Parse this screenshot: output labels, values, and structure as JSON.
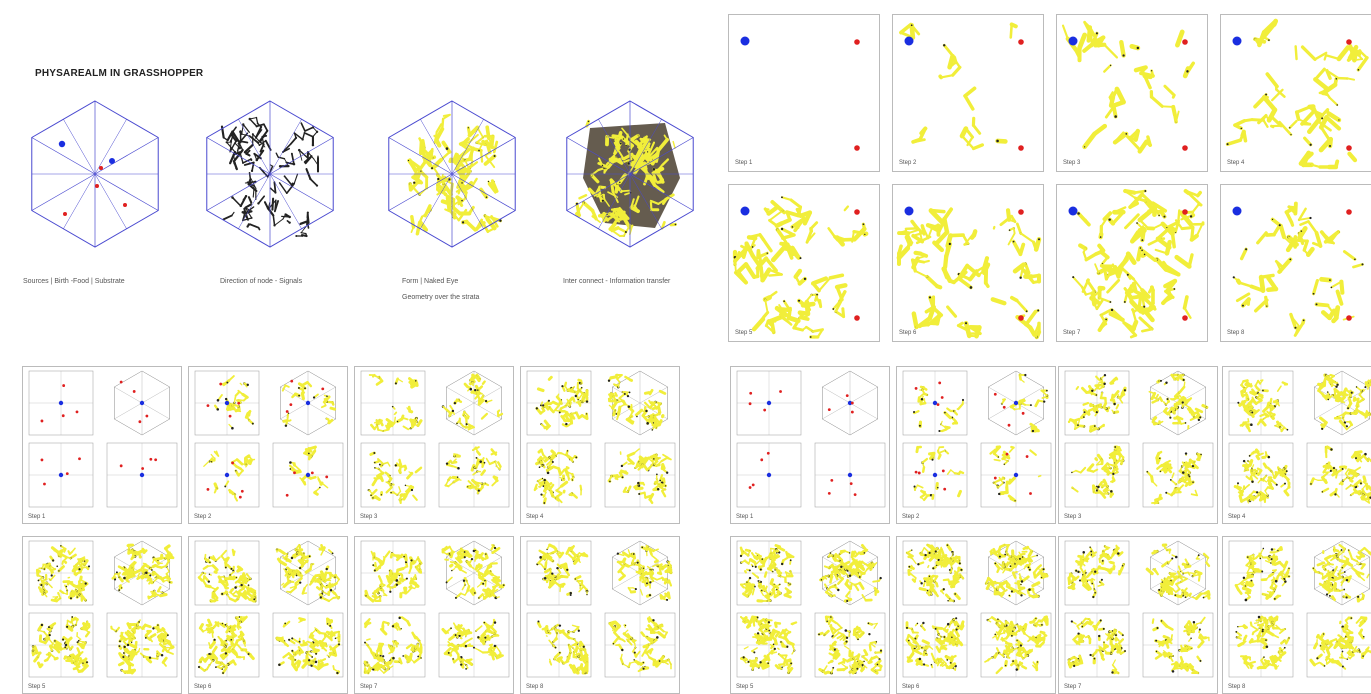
{
  "title": "PHYSAREALM IN GRASSHOPPER",
  "cubes": [
    {
      "id": "sources",
      "caption": "Sources | Birth -Food | Substrate",
      "caption2": "",
      "fill": "none"
    },
    {
      "id": "direction",
      "caption": "Direction of node - Signals",
      "caption2": "",
      "fill": "black"
    },
    {
      "id": "form",
      "caption": "Form | Naked Eye",
      "caption2": "Geometry over the strata",
      "fill": "yellow"
    },
    {
      "id": "interconnect",
      "caption": "Inter connect - Information transfer",
      "caption2": "",
      "fill": "dense"
    }
  ],
  "top_steps": [
    {
      "label": "Step 1",
      "density": 0.0
    },
    {
      "label": "Step 2",
      "density": 0.05
    },
    {
      "label": "Step 3",
      "density": 0.25
    },
    {
      "label": "Step 4",
      "density": 0.45
    },
    {
      "label": "Step 5",
      "density": 0.8
    },
    {
      "label": "Step 6",
      "density": 0.7
    },
    {
      "label": "Step 7",
      "density": 0.95
    },
    {
      "label": "Step 8",
      "density": 0.35
    }
  ],
  "left_grid_steps": [
    {
      "label": "Step 1",
      "density": 0.0
    },
    {
      "label": "Step 2",
      "density": 0.1
    },
    {
      "label": "Step 3",
      "density": 0.3
    },
    {
      "label": "Step 4",
      "density": 0.5
    },
    {
      "label": "Step 5",
      "density": 0.8
    },
    {
      "label": "Step 6",
      "density": 0.75
    },
    {
      "label": "Step 7",
      "density": 0.7
    },
    {
      "label": "Step 8",
      "density": 0.55
    }
  ],
  "right_grid_steps": [
    {
      "label": "Step 1",
      "density": 0.0
    },
    {
      "label": "Step 2",
      "density": 0.1
    },
    {
      "label": "Step 3",
      "density": 0.45
    },
    {
      "label": "Step 4",
      "density": 0.6
    },
    {
      "label": "Step 5",
      "density": 0.8
    },
    {
      "label": "Step 6",
      "density": 0.85
    },
    {
      "label": "Step 7",
      "density": 0.6
    },
    {
      "label": "Step 8",
      "density": 0.65
    }
  ],
  "colors": {
    "line": "#4a4ad0",
    "food": "#e02020",
    "source": "#1a2ee0",
    "slime": "#f1ee3a",
    "trail": "#222222"
  }
}
